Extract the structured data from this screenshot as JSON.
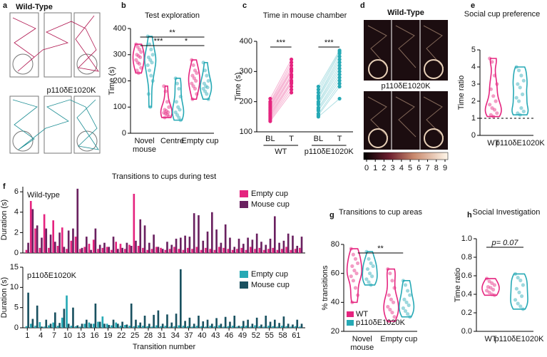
{
  "figure": {
    "panels": [
      "a",
      "b",
      "c",
      "d",
      "e",
      "f",
      "g",
      "h"
    ],
    "tracks": {
      "titles": [
        "Wild-Type",
        "p110δE1020K"
      ]
    }
  },
  "chart_data": [
    {
      "type": "violin",
      "title": "Test exploration",
      "ylabel": "Time (s)",
      "categories": [
        "Novel mouse",
        "Centre",
        "Empty cup"
      ],
      "series": [
        {
          "color": "#e5247f",
          "values": [
            [
              340,
              330,
              320,
              310,
              300,
              295,
              290,
              280,
              270,
              265,
              250,
              240,
              230
            ],
            [
              180,
              160,
              120,
              100,
              90,
              85,
              80,
              78,
              75,
              70,
              65,
              60
            ],
            [
              280,
              260,
              240,
              230,
              220,
              210,
              200,
              190,
              180,
              170,
              150,
              130
            ]
          ]
        },
        {
          "color": "#26a9b5",
          "values": [
            [
              370,
              340,
              320,
              300,
              290,
              280,
              270,
              260,
              240,
              220,
              200,
              150,
              100
            ],
            [
              210,
              190,
              170,
              140,
              120,
              100,
              90,
              80,
              70,
              60,
              50
            ],
            [
              270,
              240,
              220,
              200,
              190,
              180,
              175,
              170,
              160,
              150,
              130
            ]
          ]
        }
      ],
      "ylim": [
        0,
        400
      ],
      "yticks": [
        0,
        100,
        200,
        300,
        400
      ],
      "annotations": [
        {
          "text": "***",
          "pair": [
            0,
            1
          ]
        },
        {
          "text": "**",
          "pair": [
            0,
            2
          ]
        },
        {
          "text": "*",
          "pair": [
            1,
            2
          ]
        }
      ]
    },
    {
      "type": "paired",
      "title": "Time in mouse chamber",
      "ylabel": "Time (s)",
      "xlabels": [
        "BL",
        "T"
      ],
      "groups": [
        {
          "name": "WT",
          "color": "#e5247f",
          "sig": "***",
          "bl": [
            210,
            200,
            195,
            190,
            185,
            180,
            175,
            170,
            165,
            160,
            155,
            150,
            145,
            140,
            135
          ],
          "t": [
            340,
            330,
            320,
            310,
            305,
            300,
            290,
            285,
            280,
            270,
            265,
            260,
            250,
            240,
            230
          ]
        },
        {
          "name": "p110δE1020K",
          "color": "#26a9b5",
          "sig": "***",
          "bl": [
            250,
            240,
            230,
            220,
            215,
            210,
            200,
            195,
            190,
            180,
            175,
            170,
            160,
            155,
            150
          ],
          "t": [
            370,
            365,
            360,
            350,
            340,
            330,
            320,
            310,
            300,
            290,
            280,
            270,
            260,
            250,
            210
          ]
        }
      ],
      "ylim": [
        100,
        400
      ],
      "yticks": [
        100,
        200,
        300,
        400
      ]
    },
    {
      "type": "heatmap",
      "titles": [
        "Wild-Type",
        "p110δE1020K"
      ],
      "clim": [
        0,
        9
      ],
      "colorbar_ticks": [
        0,
        1,
        2,
        3,
        4,
        5,
        6,
        7,
        8,
        9
      ]
    },
    {
      "type": "violin",
      "title": "Social cup preference",
      "ylabel": "Time ratio",
      "categories": [
        "WT",
        "p110δE1020K"
      ],
      "series": [
        {
          "color": "#e5247f",
          "values": [
            [
              4.5,
              4.3,
              3.5,
              3,
              2.7,
              2.3,
              2,
              1.8,
              1.6,
              1.5,
              1.3,
              1.2,
              1.1
            ],
            null
          ]
        },
        {
          "color": "#26a9b5",
          "values": [
            null,
            [
              4,
              3.8,
              3.5,
              3.2,
              3,
              2.8,
              2.4,
              2.2,
              2,
              1.6,
              1.4,
              1.3,
              1.2
            ]
          ]
        }
      ],
      "ylim": [
        0,
        5
      ],
      "yticks": [
        0,
        1,
        2,
        3,
        4,
        5
      ],
      "refline": 1
    },
    {
      "type": "bar",
      "title": "Transitions to cups during test",
      "label": "Wild-type",
      "ylabel": "Duration (s)",
      "x": [
        1,
        2,
        3,
        4,
        5,
        6,
        7,
        8,
        9,
        10,
        11,
        12,
        13,
        14,
        15,
        16,
        17,
        18,
        19,
        20,
        21,
        22,
        23,
        24,
        25,
        26,
        27,
        28,
        29,
        30,
        31,
        32,
        33,
        34,
        35,
        36,
        37,
        38,
        39,
        40,
        41,
        42,
        43,
        44,
        45,
        46,
        47,
        48,
        49,
        50,
        51,
        52,
        53,
        54,
        55,
        56,
        57,
        58,
        59,
        60,
        61,
        62
      ],
      "xlim": [
        0,
        63
      ],
      "series": [
        {
          "name": "Empty cup",
          "color": "#e5247f",
          "values": [
            0.3,
            5.1,
            2.4,
            0.5,
            3.8,
            0.5,
            3.2,
            0.7,
            2.5,
            0.4,
            1.2,
            1.6,
            0.4,
            0.6,
            0.9,
            1.3,
            0.4,
            0.5,
            0.6,
            0.3,
            1.1,
            0.9,
            0.4,
            0.8,
            5.8,
            0.7,
            0.5,
            0.3,
            0.4,
            0.6,
            0.5,
            0.3,
            0.4,
            0.6,
            0.4,
            0.3,
            0.5,
            0.4,
            0.6,
            0.3,
            0.5,
            0.4,
            0.3,
            0.6,
            0.5,
            0.4,
            0.3,
            0.4,
            0.5,
            0.3,
            0.6,
            0.4,
            0.5,
            0.3,
            0.4,
            0.5,
            0.3,
            0.4,
            0.6,
            0.3,
            0.4,
            0.5
          ]
        },
        {
          "name": "Mouse cup",
          "color": "#6a2160",
          "values": [
            1.0,
            4.3,
            2.7,
            1.5,
            2.4,
            1.8,
            1.1,
            2.0,
            0.6,
            2.2,
            2.4,
            6.3,
            0.5,
            1.6,
            0.3,
            2.4,
            0.8,
            1.0,
            0.6,
            1.6,
            0.4,
            0.5,
            1.0,
            0.7,
            1.2,
            3.3,
            2.7,
            1.0,
            1.8,
            0.6,
            0.4,
            1.1,
            0.8,
            1.4,
            1.5,
            1.7,
            1.6,
            3.9,
            3.7,
            1.2,
            2.1,
            4.0,
            2.3,
            1.0,
            2.8,
            1.5,
            0.6,
            1.4,
            0.9,
            1.5,
            1.3,
            1.9,
            1.1,
            0.8,
            1.4,
            3.6,
            1.0,
            1.2,
            1.9,
            1.7,
            0.7,
            1.6
          ]
        }
      ],
      "ylim": [
        0,
        6.5
      ],
      "yticks": [
        0,
        2,
        4,
        6
      ]
    },
    {
      "type": "bar",
      "label": "p110δE1020K",
      "ylabel": "Duration (s)",
      "xlabel": "Transition number",
      "x": [
        1,
        2,
        3,
        4,
        5,
        6,
        7,
        8,
        9,
        10,
        11,
        12,
        13,
        14,
        15,
        16,
        17,
        18,
        19,
        20,
        21,
        22,
        23,
        24,
        25,
        26,
        27,
        28,
        29,
        30,
        31,
        32,
        33,
        34,
        35,
        36,
        37,
        38,
        39,
        40,
        41,
        42,
        43,
        44,
        45,
        46,
        47,
        48,
        49,
        50,
        51,
        52,
        53,
        54,
        55,
        56,
        57,
        58,
        59,
        60,
        61,
        62
      ],
      "xlim": [
        0,
        63
      ],
      "xticks": [
        1,
        4,
        7,
        10,
        13,
        16,
        19,
        22,
        25,
        28,
        31,
        34,
        37,
        40,
        43,
        46,
        49,
        52,
        55,
        58,
        61
      ],
      "series": [
        {
          "name": "Empty cup",
          "color": "#26a9b5",
          "values": [
            0.4,
            1.0,
            0.5,
            1.4,
            0.3,
            0.6,
            1.3,
            0.5,
            2.5,
            8.0,
            0.5,
            0.4,
            0.3,
            1.0,
            1.3,
            1.0,
            1.5,
            2.8,
            1.0,
            0.6,
            1.3,
            0.5,
            0.7,
            0.5,
            0.4,
            0.6,
            0.5,
            0.4,
            0.3,
            0.6,
            0.4,
            0.5,
            0.3,
            0.4,
            0.6,
            0.5,
            0.4,
            0.3,
            0.5,
            0.4,
            0.3,
            0.5,
            0.4,
            0.6,
            0.3,
            0.4,
            0.5,
            0.3,
            0.4,
            0.5,
            0.3,
            0.6,
            0.4,
            0.3,
            0.5,
            0.4,
            0.3,
            0.5,
            0.4,
            0.3,
            0.4,
            0.3
          ]
        },
        {
          "name": "Mouse cup",
          "color": "#1a5160",
          "values": [
            8.7,
            2.2,
            5.5,
            0.3,
            2.0,
            1.0,
            3.8,
            1.2,
            4.7,
            1.0,
            5.0,
            0.6,
            1.0,
            2.0,
            1.0,
            6.0,
            1.5,
            1.0,
            0.7,
            2.0,
            1.0,
            1.5,
            0.8,
            6.0,
            2.0,
            1.3,
            3.0,
            1.0,
            3.2,
            4.3,
            1.0,
            3.3,
            1.3,
            3.5,
            14.5,
            1.7,
            2.5,
            1.0,
            3.0,
            1.6,
            2.0,
            1.0,
            2.4,
            1.0,
            2.7,
            1.5,
            3.0,
            0.5,
            1.7,
            2.0,
            1.0,
            2.5,
            0.8,
            3.0,
            1.5,
            2.0,
            1.2,
            2.8,
            1.0,
            0.8,
            2.0,
            1.0
          ]
        }
      ],
      "ylim": [
        0,
        15
      ],
      "yticks": [
        0,
        5,
        10,
        15
      ]
    },
    {
      "type": "violin",
      "title": "Transitions to cup areas",
      "ylabel": "% transitions",
      "categories": [
        "Novel mouse",
        "Empty cup"
      ],
      "series": [
        {
          "name": "WT",
          "color": "#e5247f",
          "values": [
            [
              77,
              73,
              70,
              67,
              65,
              62,
              60,
              58,
              55,
              50,
              45,
              40
            ],
            [
              63,
              60,
              55,
              50,
              45,
              42,
              40,
              37,
              35,
              33,
              30,
              27
            ]
          ]
        },
        {
          "name": "p110δE1020K",
          "color": "#26a9b5",
          "values": [
            [
              75,
              70,
              67,
              65,
              63,
              60,
              58,
              56,
              54,
              52
            ],
            [
              55,
              52,
              48,
              45,
              42,
              40,
              38,
              36,
              34,
              32,
              30
            ]
          ]
        }
      ],
      "ylim": [
        20,
        80
      ],
      "yticks": [
        20,
        40,
        60,
        80
      ],
      "annotations": [
        {
          "text": "**",
          "pair": [
            0,
            1
          ]
        }
      ]
    },
    {
      "type": "violin",
      "title": "Social Investigation",
      "ylabel": "Time ratio",
      "categories": [
        "WT",
        "p110δE1020K"
      ],
      "series": [
        {
          "color": "#e5247f",
          "values": [
            [
              0.57,
              0.54,
              0.52,
              0.5,
              0.48,
              0.47,
              0.45,
              0.44,
              0.42,
              0.4,
              0.39
            ],
            null
          ]
        },
        {
          "color": "#26a9b5",
          "values": [
            null,
            [
              0.62,
              0.58,
              0.55,
              0.5,
              0.46,
              0.42,
              0.38,
              0.34,
              0.3,
              0.27,
              0.24
            ]
          ]
        }
      ],
      "ylim": [
        0,
        1
      ],
      "yticks": [
        {
          "value": 0,
          "label": "0.0"
        },
        0.2,
        0.4,
        0.6,
        0.8,
        {
          "value": 1,
          "label": "1.0"
        }
      ],
      "annotations": [
        {
          "text": "p= 0.07",
          "pair": [
            0,
            1
          ]
        }
      ]
    }
  ]
}
